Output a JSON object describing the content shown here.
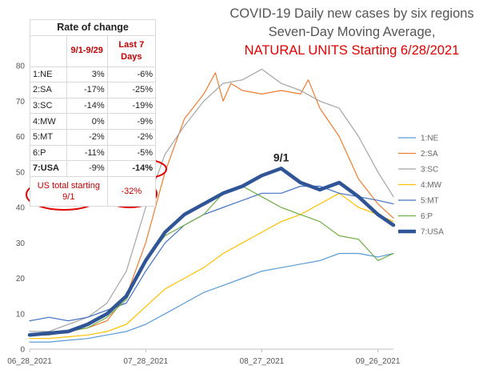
{
  "chart_data": {
    "type": "line",
    "title_lines": [
      "COVID-19 Daily new cases by six regions",
      "Seven-Day Moving Average,"
    ],
    "title_red": "NATURAL UNITS Starting 6/28/2021",
    "x_labels": [
      "06_28_2021",
      "07_28_2021",
      "08_27_2021",
      "09_26_2021"
    ],
    "x_label_days": [
      0,
      30,
      60,
      90
    ],
    "x_range_days": [
      0,
      94
    ],
    "ylim": [
      0,
      80
    ],
    "yticks": [
      0,
      10,
      20,
      30,
      40,
      50,
      60,
      70,
      80
    ],
    "gridlines": false,
    "legend_position": "right",
    "annotation": {
      "text": "9/1",
      "x_day": 65,
      "y": 53
    },
    "series": [
      {
        "name": "1:NE",
        "color": "#5b9bd5",
        "width": 1.2,
        "x": [
          0,
          5,
          10,
          15,
          20,
          25,
          30,
          35,
          40,
          45,
          50,
          55,
          60,
          65,
          70,
          75,
          80,
          85,
          90,
          94
        ],
        "values": [
          2,
          2,
          2.5,
          3,
          4,
          5,
          7,
          10,
          13,
          16,
          18,
          20,
          22,
          23,
          24,
          25,
          27,
          27,
          26,
          27
        ]
      },
      {
        "name": "2:SA",
        "color": "#ed7d31",
        "width": 1.2,
        "x": [
          0,
          5,
          10,
          15,
          20,
          25,
          30,
          35,
          40,
          45,
          48,
          50,
          52,
          55,
          60,
          65,
          70,
          72,
          75,
          80,
          85,
          90,
          94
        ],
        "values": [
          4,
          4,
          5,
          6,
          8,
          15,
          30,
          50,
          65,
          72,
          78,
          70,
          75,
          73,
          72,
          73,
          72,
          76,
          68,
          60,
          48,
          41,
          37
        ]
      },
      {
        "name": "3:SC",
        "color": "#a5a5a5",
        "width": 1.2,
        "x": [
          0,
          5,
          10,
          15,
          20,
          25,
          30,
          35,
          40,
          45,
          50,
          55,
          60,
          65,
          70,
          75,
          80,
          85,
          90,
          94
        ],
        "values": [
          5,
          5,
          7,
          9,
          13,
          22,
          40,
          55,
          63,
          70,
          75,
          76,
          79,
          75,
          73,
          70,
          68,
          60,
          50,
          43
        ]
      },
      {
        "name": "4:MW",
        "color": "#ffc000",
        "width": 1.2,
        "x": [
          0,
          5,
          10,
          15,
          20,
          25,
          30,
          35,
          40,
          45,
          50,
          55,
          60,
          65,
          70,
          75,
          80,
          85,
          90,
          94
        ],
        "values": [
          3,
          3,
          3.5,
          4,
          5,
          7,
          12,
          17,
          20,
          23,
          27,
          30,
          33,
          36,
          38,
          41,
          44,
          40,
          38,
          36
        ]
      },
      {
        "name": "5:MT",
        "color": "#4472c4",
        "width": 1.2,
        "x": [
          0,
          5,
          10,
          15,
          20,
          25,
          30,
          35,
          40,
          45,
          50,
          55,
          60,
          65,
          70,
          75,
          80,
          85,
          90,
          94
        ],
        "values": [
          8,
          9,
          8,
          9,
          11,
          13,
          22,
          30,
          35,
          38,
          40,
          42,
          44,
          44,
          46,
          46,
          44,
          43,
          42,
          41
        ]
      },
      {
        "name": "6:P",
        "color": "#70ad47",
        "width": 1.2,
        "x": [
          0,
          5,
          10,
          15,
          20,
          25,
          30,
          35,
          40,
          45,
          50,
          55,
          60,
          65,
          70,
          75,
          80,
          85,
          90,
          94
        ],
        "values": [
          4,
          4,
          5,
          6,
          9,
          14,
          25,
          32,
          35,
          38,
          44,
          46,
          43,
          40,
          38,
          36,
          32,
          31,
          25,
          27
        ]
      },
      {
        "name": "7:USA",
        "color": "#2f5597",
        "width": 4.5,
        "x": [
          0,
          5,
          10,
          15,
          20,
          25,
          30,
          35,
          40,
          45,
          50,
          55,
          60,
          65,
          70,
          75,
          80,
          85,
          90,
          94
        ],
        "values": [
          4,
          4.5,
          5,
          7,
          10,
          15,
          25,
          33,
          38,
          41,
          44,
          46,
          49,
          51,
          47,
          45,
          47,
          43,
          38,
          35
        ]
      }
    ]
  },
  "rate_table": {
    "title": "Rate of change",
    "col1_header": "9/1-9/29",
    "col2_header": "Last 7 Days",
    "rows": [
      {
        "region": "1:NE",
        "v1": "3%",
        "v2": "-6%"
      },
      {
        "region": "2:SA",
        "v1": "-17%",
        "v2": "-25%"
      },
      {
        "region": "3:SC",
        "v1": "-14%",
        "v2": "-19%"
      },
      {
        "region": "4:MW",
        "v1": "0%",
        "v2": "-9%"
      },
      {
        "region": "5:MT",
        "v1": "-2%",
        "v2": "-2%"
      },
      {
        "region": "6:P",
        "v1": "-11%",
        "v2": "-5%"
      }
    ],
    "usa_row": {
      "region": "7:USA",
      "v1": "-9%",
      "v2": "-14%"
    },
    "total_label": "US total starting 9/1",
    "total_value": "-32%"
  },
  "colors": {
    "title_red": "#e00000",
    "table_red": "#c00000",
    "circle_red": "#e00000"
  }
}
